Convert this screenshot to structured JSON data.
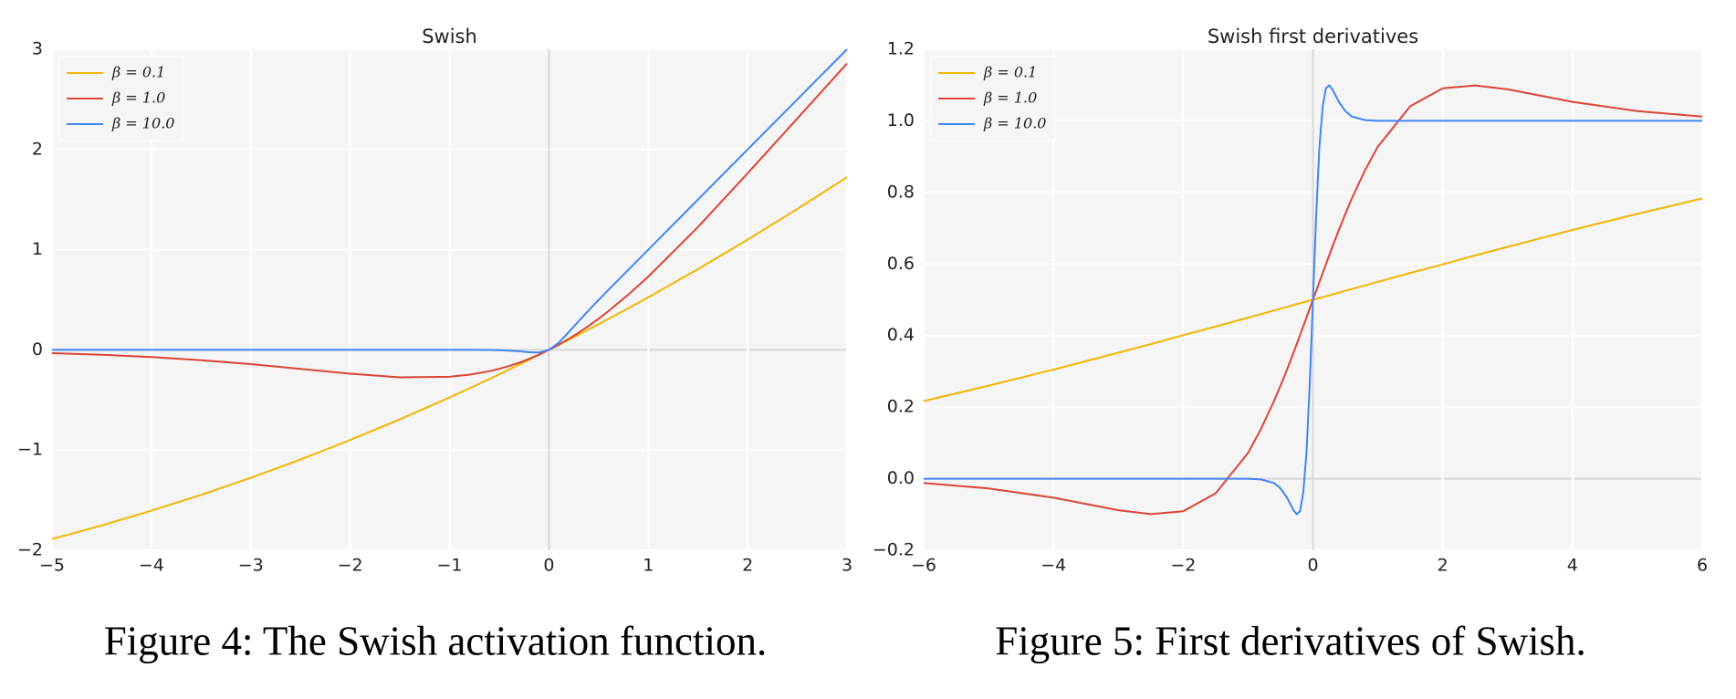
{
  "chart_data": [
    {
      "type": "line",
      "title": "Swish",
      "caption": "Figure 4: The Swish activation function.",
      "x": [
        -5,
        -4.5,
        -4,
        -3.5,
        -3,
        -2.5,
        -2,
        -1.5,
        -1,
        -0.8,
        -0.6,
        -0.5,
        -0.4,
        -0.3,
        -0.2,
        -0.1,
        0,
        0.1,
        0.2,
        0.3,
        0.4,
        0.5,
        0.6,
        0.8,
        1,
        1.5,
        2,
        2.5,
        3
      ],
      "series": [
        {
          "name": "β = 0.1",
          "color": "#f4b400",
          "values": [
            -1.888,
            -1.752,
            -1.605,
            -1.447,
            -1.277,
            -1.095,
            -0.9,
            -0.694,
            -0.475,
            -0.384,
            -0.291,
            -0.244,
            -0.196,
            -0.148,
            -0.099,
            -0.05,
            0,
            0.05,
            0.101,
            0.152,
            0.204,
            0.256,
            0.309,
            0.416,
            0.525,
            0.806,
            1.1,
            1.406,
            1.723
          ]
        },
        {
          "name": "β = 1.0",
          "color": "#db4437",
          "values": [
            -0.033,
            -0.049,
            -0.072,
            -0.103,
            -0.142,
            -0.19,
            -0.238,
            -0.274,
            -0.269,
            -0.248,
            -0.213,
            -0.189,
            -0.161,
            -0.128,
            -0.09,
            -0.048,
            0,
            0.052,
            0.11,
            0.172,
            0.239,
            0.311,
            0.387,
            0.552,
            0.731,
            1.226,
            1.762,
            2.31,
            2.858
          ]
        },
        {
          "name": "β = 10.0",
          "color": "#4285f4",
          "values": [
            0,
            0,
            0,
            0,
            0,
            0,
            0,
            0,
            0,
            0,
            -0.001,
            -0.003,
            -0.007,
            -0.014,
            -0.024,
            -0.027,
            0,
            0.073,
            0.176,
            0.286,
            0.393,
            0.497,
            0.599,
            0.8,
            1,
            1.5,
            2,
            2.5,
            3
          ]
        }
      ],
      "xlim": [
        -5,
        3
      ],
      "ylim": [
        -2,
        3
      ],
      "xticks": [
        {
          "value": -5,
          "label": "−5"
        },
        {
          "value": -4,
          "label": "−4"
        },
        {
          "value": -3,
          "label": "−3"
        },
        {
          "value": -2,
          "label": "−2"
        },
        {
          "value": -1,
          "label": "−1"
        },
        0,
        1,
        2,
        3
      ],
      "yticks": [
        {
          "value": -2,
          "label": "−2"
        },
        {
          "value": -1,
          "label": "−1"
        },
        0,
        1,
        2,
        3
      ],
      "grid": true,
      "legend": "upper left"
    },
    {
      "type": "line",
      "title": "Swish first derivatives",
      "caption": "Figure 5: First derivatives of Swish.",
      "x": [
        -6,
        -5,
        -4,
        -3,
        -2.5,
        -2,
        -1.5,
        -1,
        -0.8,
        -0.6,
        -0.5,
        -0.4,
        -0.3,
        -0.25,
        -0.2,
        -0.15,
        -0.1,
        -0.05,
        0,
        0.05,
        0.1,
        0.15,
        0.2,
        0.25,
        0.3,
        0.4,
        0.5,
        0.6,
        0.8,
        1,
        1.5,
        2,
        2.5,
        3,
        4,
        5,
        6
      ],
      "series": [
        {
          "name": "β = 0.1",
          "color": "#f4b400",
          "values": [
            0.217,
            0.26,
            0.305,
            0.352,
            0.376,
            0.401,
            0.425,
            0.45,
            0.46,
            0.47,
            0.475,
            0.48,
            0.485,
            0.488,
            0.49,
            0.493,
            0.495,
            0.498,
            0.5,
            0.502,
            0.505,
            0.507,
            0.51,
            0.512,
            0.515,
            0.52,
            0.525,
            0.53,
            0.54,
            0.55,
            0.575,
            0.599,
            0.624,
            0.648,
            0.695,
            0.74,
            0.783
          ]
        },
        {
          "name": "β = 1.0",
          "color": "#db4437",
          "values": [
            -0.012,
            -0.027,
            -0.053,
            -0.088,
            -0.099,
            -0.091,
            -0.041,
            0.072,
            0.139,
            0.217,
            0.26,
            0.305,
            0.352,
            0.376,
            0.401,
            0.425,
            0.45,
            0.475,
            0.5,
            0.525,
            0.55,
            0.575,
            0.599,
            0.624,
            0.648,
            0.695,
            0.74,
            0.783,
            0.861,
            0.928,
            1.041,
            1.091,
            1.099,
            1.088,
            1.053,
            1.027,
            1.012
          ]
        },
        {
          "name": "β = 10.0",
          "color": "#4285f4",
          "values": [
            0,
            0,
            0,
            0,
            0,
            0,
            0,
            0,
            -0.002,
            -0.012,
            -0.027,
            -0.053,
            -0.088,
            -0.099,
            -0.091,
            -0.041,
            0.072,
            0.26,
            0.5,
            0.74,
            0.928,
            1.041,
            1.091,
            1.099,
            1.088,
            1.053,
            1.027,
            1.012,
            1.002,
            1,
            1,
            1,
            1,
            1,
            1,
            1,
            1
          ]
        }
      ],
      "xlim": [
        -6,
        6
      ],
      "ylim": [
        -0.2,
        1.2
      ],
      "xticks": [
        {
          "value": -6,
          "label": "−6"
        },
        {
          "value": -4,
          "label": "−4"
        },
        {
          "value": -2,
          "label": "−2"
        },
        0,
        2,
        4,
        6
      ],
      "yticks": [
        {
          "value": -0.2,
          "label": "−0.2"
        },
        {
          "value": 0,
          "label": "0.0"
        },
        0.2,
        0.4,
        0.6,
        0.8,
        {
          "value": 1,
          "label": "1.0"
        },
        {
          "value": 1.2,
          "label": "1.2"
        }
      ],
      "grid": true,
      "legend": "upper left"
    }
  ]
}
